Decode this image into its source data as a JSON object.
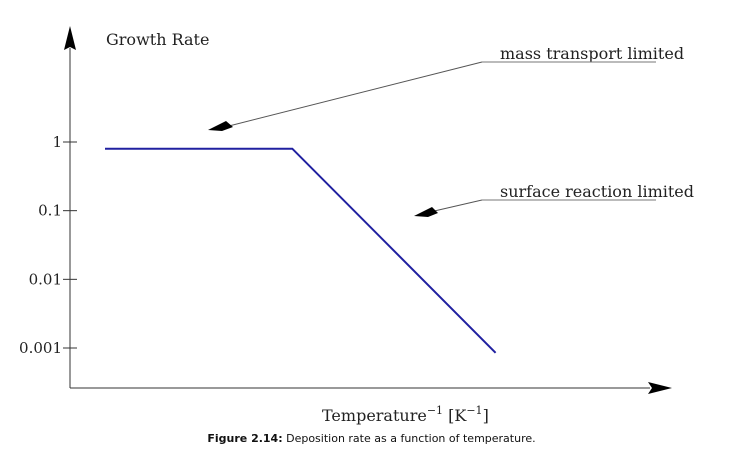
{
  "chart_data": {
    "type": "line",
    "ylabel": "Growth Rate",
    "xlabel": {
      "base": "Temperature",
      "exp": "−1",
      "unit_pre": "[K",
      "unit_exp": "−1",
      "unit_post": "]"
    },
    "y_scale": "log",
    "y_ticks": [
      {
        "value": 1,
        "label": "1"
      },
      {
        "value": 0.1,
        "label": "0.1"
      },
      {
        "value": 0.01,
        "label": "0.01"
      },
      {
        "value": 0.001,
        "label": "0.001"
      }
    ],
    "series_color": "#2020a0",
    "series": [
      {
        "points": [
          {
            "x": 0.0,
            "y": 0.8
          },
          {
            "x": 0.35,
            "y": 0.8
          },
          {
            "x": 0.73,
            "y": 0.00085
          }
        ]
      }
    ],
    "annotations": [
      {
        "text": "mass transport limited"
      },
      {
        "text": "surface reaction limited"
      }
    ]
  },
  "caption": {
    "label": "Figure 2.14:",
    "text": " Deposition rate as a function of temperature."
  }
}
